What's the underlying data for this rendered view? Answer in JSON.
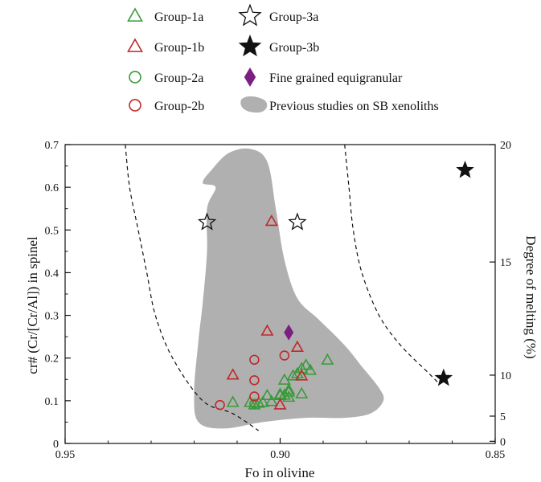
{
  "chart_data": {
    "type": "scatter",
    "title": "",
    "xlabel": "Fo in olivine",
    "ylabel": "cr# (Cr/[Cr/Al]) in spinel",
    "y2label": "Degree of melting (%)",
    "x_reversed": true,
    "xlim": [
      0.95,
      0.85
    ],
    "ylim": [
      0,
      0.7
    ],
    "x_ticks": [
      {
        "value": 0.95,
        "label": "0.95"
      },
      {
        "value": 0.9,
        "label": "0.90"
      },
      {
        "value": 0.85,
        "label": "0.85"
      }
    ],
    "y_ticks": [
      {
        "value": 0,
        "label": "0"
      },
      {
        "value": 0.1,
        "label": "0.1"
      },
      {
        "value": 0.2,
        "label": "0.2"
      },
      {
        "value": 0.3,
        "label": "0.3"
      },
      {
        "value": 0.4,
        "label": "0.4"
      },
      {
        "value": 0.5,
        "label": "0.5"
      },
      {
        "value": 0.6,
        "label": "0.6"
      },
      {
        "value": 0.7,
        "label": "0.7"
      }
    ],
    "y2_ticks": [
      {
        "label": "20",
        "cr": 0.7
      },
      {
        "label": "15",
        "cr": 0.425
      },
      {
        "label": "10",
        "cr": 0.16
      },
      {
        "label": "5",
        "cr": 0.064
      },
      {
        "label": "0",
        "cr": 0.005
      }
    ],
    "grid": false,
    "legend_position": "top",
    "legend_marker_color": "#777777",
    "series": [
      {
        "name": "Group-1a",
        "marker": "triangle-open",
        "color": "#3a9a3a",
        "points": [
          [
            0.889,
            0.195
          ],
          [
            0.895,
            0.116
          ],
          [
            0.895,
            0.175
          ],
          [
            0.894,
            0.183
          ],
          [
            0.893,
            0.171
          ],
          [
            0.896,
            0.163
          ],
          [
            0.897,
            0.158
          ],
          [
            0.898,
            0.12
          ],
          [
            0.898,
            0.108
          ],
          [
            0.899,
            0.148
          ],
          [
            0.9,
            0.115
          ],
          [
            0.9,
            0.112
          ],
          [
            0.899,
            0.113
          ],
          [
            0.898,
            0.125
          ],
          [
            0.902,
            0.098
          ],
          [
            0.903,
            0.112
          ],
          [
            0.904,
            0.096
          ],
          [
            0.905,
            0.094
          ],
          [
            0.906,
            0.09
          ],
          [
            0.907,
            0.096
          ],
          [
            0.911,
            0.096
          ]
        ]
      },
      {
        "name": "Group-1b",
        "marker": "triangle-open",
        "color": "#c0282a",
        "points": [
          [
            0.902,
            0.52
          ],
          [
            0.903,
            0.263
          ],
          [
            0.896,
            0.225
          ],
          [
            0.895,
            0.158
          ],
          [
            0.9,
            0.09
          ],
          [
            0.911,
            0.16
          ]
        ]
      },
      {
        "name": "Group-2a",
        "marker": "circle-open",
        "color": "#3a9a3a",
        "points": [
          [
            0.906,
            0.093
          ]
        ]
      },
      {
        "name": "Group-2b",
        "marker": "circle-open",
        "color": "#c0282a",
        "points": [
          [
            0.899,
            0.206
          ],
          [
            0.906,
            0.196
          ],
          [
            0.906,
            0.148
          ],
          [
            0.906,
            0.11
          ],
          [
            0.914,
            0.09
          ]
        ]
      },
      {
        "name": "Group-3a",
        "marker": "star-open",
        "color": "#111111",
        "points": [
          [
            0.896,
            0.518
          ],
          [
            0.917,
            0.518
          ]
        ]
      },
      {
        "name": "Group-3b",
        "marker": "star-filled",
        "color": "#111111",
        "points": [
          [
            0.857,
            0.64
          ],
          [
            0.862,
            0.153
          ]
        ]
      },
      {
        "name": "Fine grained equigranular",
        "marker": "diamond-filled",
        "color": "#7b1f82",
        "points": [
          [
            0.898,
            0.26
          ]
        ]
      }
    ],
    "regions": [
      {
        "name": "Previous studies on SB xenoliths",
        "color": "#b0b0b0",
        "outline": [
          [
            0.915,
            0.6
          ],
          [
            0.918,
            0.61
          ],
          [
            0.916,
            0.64
          ],
          [
            0.912,
            0.68
          ],
          [
            0.907,
            0.69
          ],
          [
            0.903,
            0.66
          ],
          [
            0.901,
            0.55
          ],
          [
            0.899,
            0.43
          ],
          [
            0.896,
            0.34
          ],
          [
            0.891,
            0.29
          ],
          [
            0.885,
            0.23
          ],
          [
            0.881,
            0.18
          ],
          [
            0.877,
            0.13
          ],
          [
            0.876,
            0.1
          ],
          [
            0.879,
            0.07
          ],
          [
            0.885,
            0.06
          ],
          [
            0.894,
            0.06
          ],
          [
            0.904,
            0.05
          ],
          [
            0.913,
            0.035
          ],
          [
            0.919,
            0.05
          ],
          [
            0.92,
            0.12
          ],
          [
            0.919,
            0.24
          ],
          [
            0.918,
            0.33
          ],
          [
            0.917,
            0.45
          ],
          [
            0.917,
            0.55
          ]
        ]
      }
    ],
    "curves": [
      {
        "style": "dashed",
        "color": "#111111",
        "points": [
          [
            0.936,
            0.7
          ],
          [
            0.935,
            0.6
          ],
          [
            0.933,
            0.5
          ],
          [
            0.931,
            0.4
          ],
          [
            0.929,
            0.3
          ],
          [
            0.925,
            0.2
          ],
          [
            0.918,
            0.1
          ],
          [
            0.911,
            0.07
          ],
          [
            0.905,
            0.03
          ]
        ]
      },
      {
        "style": "dashed",
        "color": "#111111",
        "points": [
          [
            0.885,
            0.7
          ],
          [
            0.884,
            0.6
          ],
          [
            0.883,
            0.5
          ],
          [
            0.881,
            0.4
          ],
          [
            0.877,
            0.3
          ],
          [
            0.872,
            0.23
          ],
          [
            0.866,
            0.17
          ],
          [
            0.863,
            0.14
          ]
        ]
      }
    ]
  }
}
